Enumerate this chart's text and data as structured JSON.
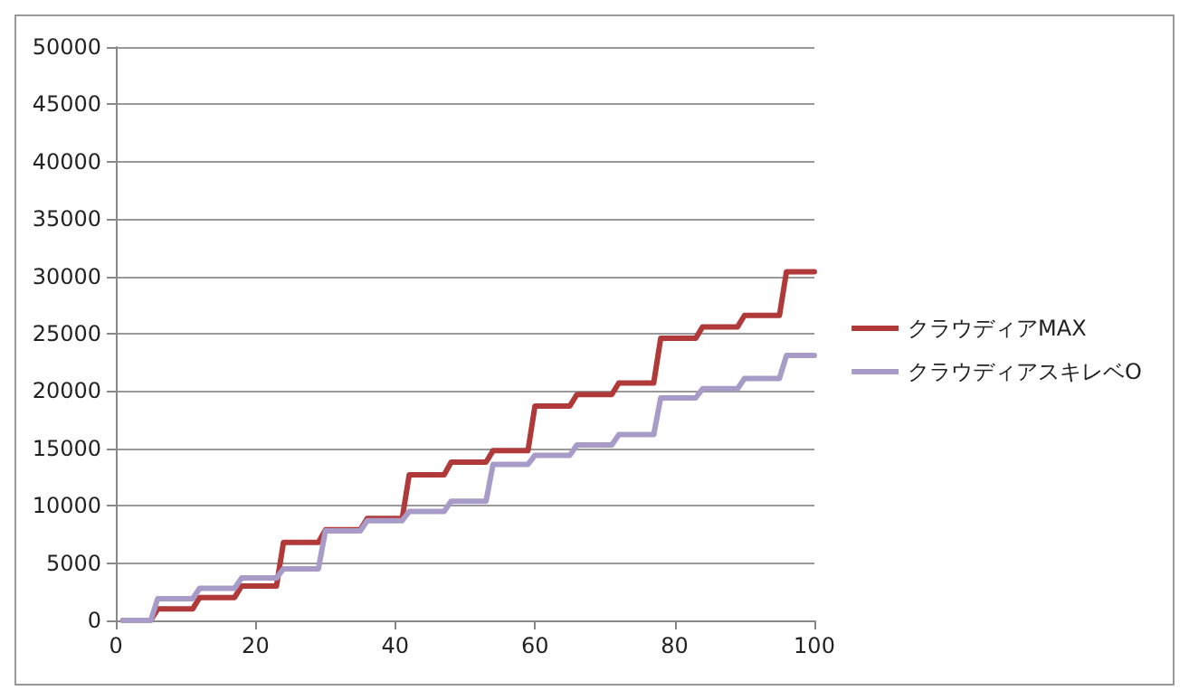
{
  "chart_data": {
    "type": "line",
    "x": [
      1,
      5,
      6,
      11,
      12,
      17,
      18,
      23,
      24,
      29,
      30,
      35,
      36,
      41,
      42,
      47,
      48,
      53,
      54,
      59,
      60,
      65,
      66,
      71,
      72,
      77,
      78,
      83,
      84,
      89,
      90,
      95,
      96,
      100
    ],
    "series": [
      {
        "name": "クラウディアMAX",
        "color": "#b03a3a",
        "values": [
          0,
          0,
          1000,
          1000,
          2000,
          2000,
          3000,
          3000,
          6800,
          6800,
          7900,
          7900,
          8900,
          8900,
          12700,
          12700,
          13800,
          13800,
          14800,
          14800,
          18700,
          18700,
          19700,
          19700,
          20700,
          20700,
          24600,
          24600,
          25600,
          25600,
          26600,
          26600,
          30400,
          30400
        ]
      },
      {
        "name": "クラウディアスキレベO",
        "color": "#a99bc8",
        "values": [
          0,
          0,
          1900,
          1900,
          2800,
          2800,
          3700,
          3700,
          4500,
          4500,
          7800,
          7800,
          8700,
          8700,
          9500,
          9500,
          10400,
          10400,
          13600,
          13600,
          14400,
          14400,
          15300,
          15300,
          16200,
          16200,
          19400,
          19400,
          20200,
          20200,
          21100,
          21100,
          23100,
          23100
        ]
      }
    ],
    "xlim": [
      0,
      100
    ],
    "xticks": [
      0,
      20,
      40,
      60,
      80,
      100
    ],
    "ylim": [
      0,
      50000
    ],
    "yticks": [
      0,
      5000,
      10000,
      15000,
      20000,
      25000,
      30000,
      35000,
      40000,
      45000,
      50000
    ],
    "grid": "y",
    "legend": "right",
    "marker": "none",
    "line_style": "solid"
  }
}
